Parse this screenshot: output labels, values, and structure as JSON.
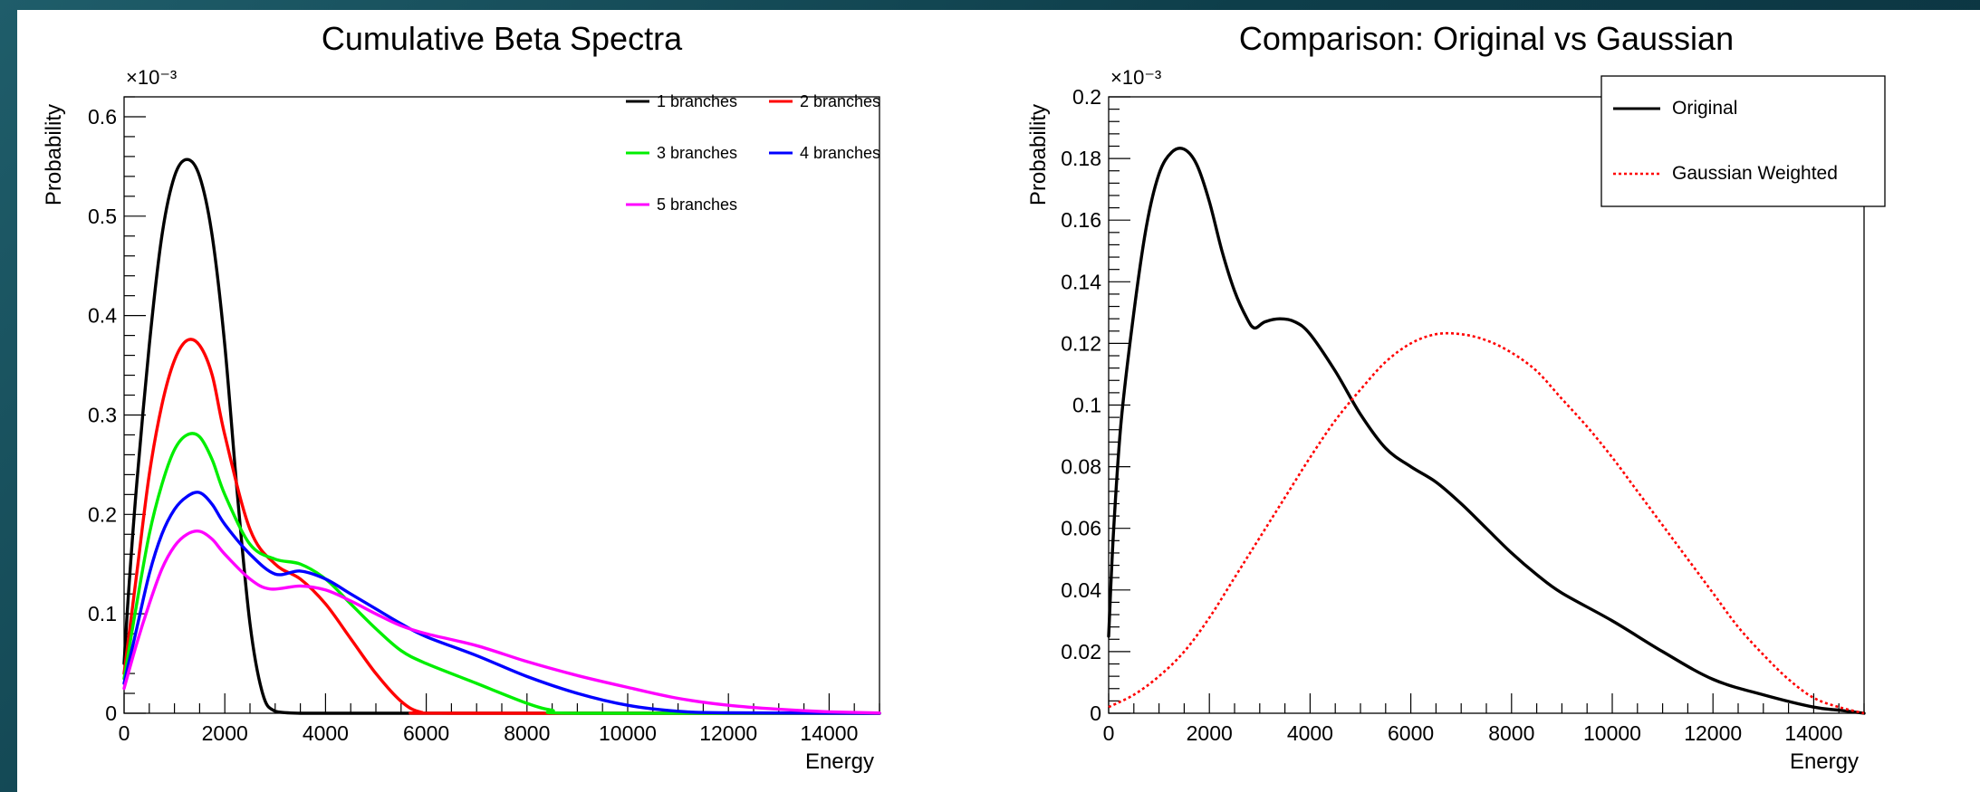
{
  "chart_data": [
    {
      "type": "line",
      "title": "Cumulative Beta Spectra",
      "xlabel": "Energy",
      "ylabel": "Probability",
      "y_exponent": "×10⁻³",
      "xlim": [
        0,
        15000
      ],
      "ylim": [
        0,
        0.62
      ],
      "x_ticks": [
        0,
        2000,
        4000,
        6000,
        8000,
        10000,
        12000,
        14000
      ],
      "x_tick_labels": [
        "0",
        "2000",
        "4000",
        "6000",
        "8000",
        "10000",
        "12000",
        "14000"
      ],
      "y_ticks": [
        0,
        0.1,
        0.2,
        0.3,
        0.4,
        0.5,
        0.6
      ],
      "y_tick_labels": [
        "0",
        "0.1",
        "0.2",
        "0.3",
        "0.4",
        "0.5",
        "0.6"
      ],
      "legend_position": "top-right",
      "grid": false,
      "series": [
        {
          "name": "1 branches",
          "color": "#000000",
          "style": "solid",
          "x": [
            0,
            100,
            250,
            500,
            750,
            1000,
            1250,
            1500,
            1750,
            2000,
            2250,
            2500,
            2750,
            3000,
            3500,
            4000,
            6000,
            15000
          ],
          "y": [
            0.05,
            0.13,
            0.23,
            0.37,
            0.48,
            0.54,
            0.557,
            0.54,
            0.48,
            0.37,
            0.22,
            0.09,
            0.02,
            0.002,
            0,
            0,
            0,
            0
          ]
        },
        {
          "name": "2 branches",
          "color": "#ff0000",
          "style": "solid",
          "x": [
            0,
            250,
            500,
            750,
            1000,
            1250,
            1500,
            1750,
            2000,
            2500,
            3000,
            3500,
            4000,
            4500,
            5000,
            5500,
            5900,
            6500,
            15000
          ],
          "y": [
            0.04,
            0.14,
            0.24,
            0.31,
            0.355,
            0.375,
            0.37,
            0.34,
            0.28,
            0.185,
            0.15,
            0.135,
            0.11,
            0.075,
            0.04,
            0.012,
            0.001,
            0,
            0
          ]
        },
        {
          "name": "3 branches",
          "color": "#00ee00",
          "style": "solid",
          "x": [
            0,
            250,
            500,
            750,
            1000,
            1250,
            1500,
            1750,
            2000,
            2500,
            3000,
            3500,
            4000,
            4500,
            5000,
            5500,
            6000,
            7000,
            8000,
            8500,
            9000,
            15000
          ],
          "y": [
            0.035,
            0.11,
            0.18,
            0.23,
            0.265,
            0.28,
            0.278,
            0.255,
            0.22,
            0.17,
            0.155,
            0.15,
            0.135,
            0.11,
            0.085,
            0.063,
            0.05,
            0.03,
            0.01,
            0.003,
            0,
            0
          ]
        },
        {
          "name": "4 branches",
          "color": "#0000ff",
          "style": "solid",
          "x": [
            0,
            250,
            500,
            750,
            1000,
            1250,
            1500,
            1750,
            2000,
            2500,
            3000,
            3500,
            4000,
            4500,
            5000,
            5500,
            6000,
            7000,
            8000,
            9000,
            10000,
            11000,
            12000,
            15000
          ],
          "y": [
            0.03,
            0.085,
            0.14,
            0.18,
            0.205,
            0.218,
            0.222,
            0.21,
            0.19,
            0.16,
            0.14,
            0.143,
            0.135,
            0.12,
            0.105,
            0.09,
            0.077,
            0.058,
            0.037,
            0.02,
            0.008,
            0.002,
            0.0005,
            0
          ]
        },
        {
          "name": "5 branches",
          "color": "#ff00ff",
          "style": "solid",
          "x": [
            0,
            250,
            500,
            750,
            1000,
            1250,
            1500,
            1750,
            2000,
            2500,
            2900,
            3500,
            4000,
            4500,
            5000,
            5500,
            6000,
            7000,
            8000,
            9000,
            10000,
            11000,
            12000,
            13000,
            14000,
            15000
          ],
          "y": [
            0.025,
            0.07,
            0.11,
            0.145,
            0.168,
            0.18,
            0.183,
            0.175,
            0.16,
            0.135,
            0.125,
            0.128,
            0.124,
            0.113,
            0.1,
            0.088,
            0.08,
            0.068,
            0.052,
            0.038,
            0.026,
            0.015,
            0.008,
            0.004,
            0.0015,
            0.0003
          ]
        }
      ]
    },
    {
      "type": "line",
      "title": "Comparison: Original vs Gaussian",
      "xlabel": "Energy",
      "ylabel": "Probability",
      "y_exponent": "×10⁻³",
      "xlim": [
        0,
        15000
      ],
      "ylim": [
        0,
        0.2
      ],
      "x_ticks": [
        0,
        2000,
        4000,
        6000,
        8000,
        10000,
        12000,
        14000
      ],
      "x_tick_labels": [
        "0",
        "2000",
        "4000",
        "6000",
        "8000",
        "10000",
        "12000",
        "14000"
      ],
      "y_ticks": [
        0,
        0.02,
        0.04,
        0.06,
        0.08,
        0.1,
        0.12,
        0.14,
        0.16,
        0.18,
        0.2
      ],
      "y_tick_labels": [
        "0",
        "0.02",
        "0.04",
        "0.06",
        "0.08",
        "0.1",
        "0.12",
        "0.14",
        "0.16",
        "0.18",
        "0.2"
      ],
      "legend_position": "top-right",
      "grid": false,
      "series": [
        {
          "name": "Original",
          "color": "#000000",
          "style": "solid",
          "x": [
            0,
            100,
            250,
            500,
            750,
            1000,
            1250,
            1500,
            1750,
            2000,
            2250,
            2500,
            2750,
            2900,
            3100,
            3400,
            3700,
            4000,
            4500,
            5000,
            5500,
            6000,
            6500,
            7000,
            7500,
            8000,
            8500,
            9000,
            10000,
            11000,
            12000,
            13000,
            14000,
            14500,
            15000
          ],
          "y": [
            0.025,
            0.06,
            0.095,
            0.13,
            0.158,
            0.175,
            0.182,
            0.183,
            0.178,
            0.166,
            0.15,
            0.137,
            0.128,
            0.125,
            0.127,
            0.128,
            0.127,
            0.123,
            0.111,
            0.097,
            0.086,
            0.08,
            0.075,
            0.068,
            0.06,
            0.052,
            0.045,
            0.039,
            0.03,
            0.02,
            0.011,
            0.006,
            0.002,
            0.001,
            0
          ]
        },
        {
          "name": "Gaussian Weighted",
          "color": "#ff0000",
          "style": "dotted",
          "x": [
            0,
            500,
            1000,
            1500,
            2000,
            2500,
            3000,
            3500,
            4000,
            4500,
            5000,
            5500,
            6000,
            6500,
            7000,
            7500,
            8000,
            8500,
            9000,
            9500,
            10000,
            10500,
            11000,
            11500,
            12000,
            12500,
            13000,
            13500,
            14000,
            14500,
            15000
          ],
          "y": [
            0.002,
            0.006,
            0.012,
            0.02,
            0.031,
            0.044,
            0.057,
            0.07,
            0.083,
            0.095,
            0.105,
            0.114,
            0.12,
            0.123,
            0.123,
            0.121,
            0.117,
            0.111,
            0.102,
            0.093,
            0.083,
            0.072,
            0.061,
            0.05,
            0.039,
            0.028,
            0.019,
            0.011,
            0.005,
            0.002,
            0
          ]
        }
      ]
    }
  ]
}
